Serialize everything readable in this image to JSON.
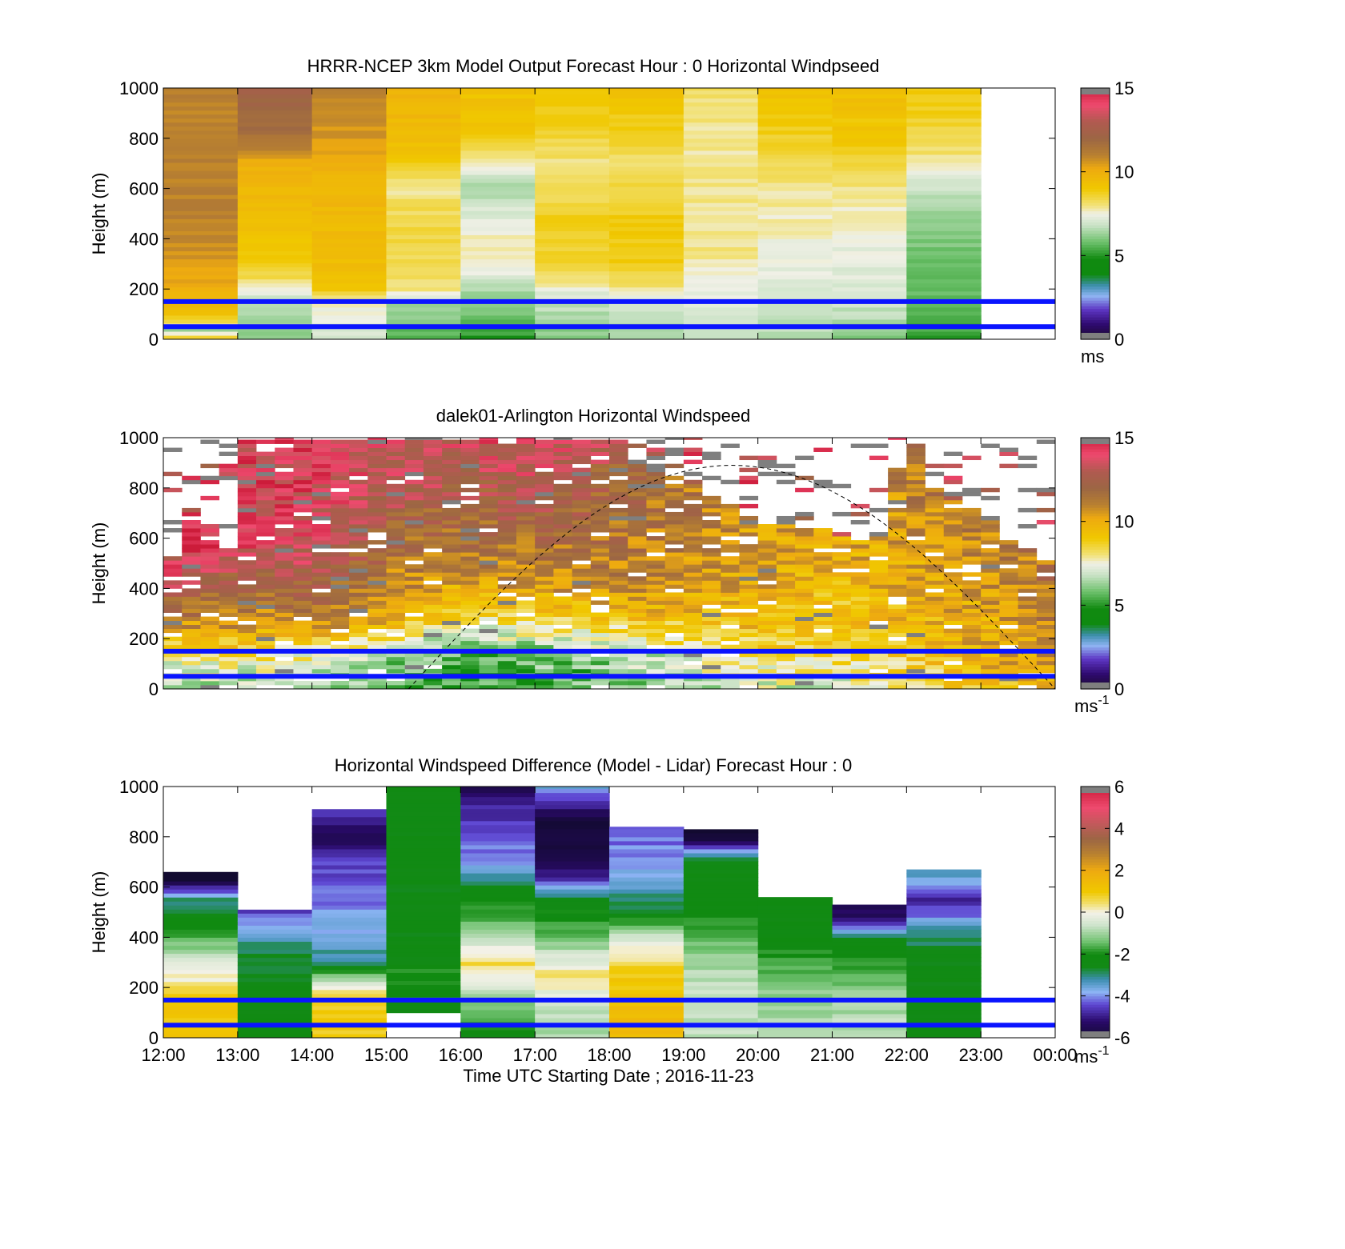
{
  "figure": {
    "xlabel": "Time UTC  Starting Date ; 2016-11-23"
  },
  "chart_data": [
    {
      "type": "heatmap",
      "title": "HRRR-NCEP 3km Model Output   Forecast Hour : 0 Horizontal Windpseed",
      "ylabel": "Height (m)",
      "yticks": [
        "0",
        "200",
        "400",
        "600",
        "800",
        "1000"
      ],
      "ylim": [
        0,
        1000
      ],
      "x_tick_labels": [
        "12:00",
        "13:00",
        "14:00",
        "15:00",
        "16:00",
        "17:00",
        "18:00",
        "19:00",
        "20:00",
        "21:00",
        "22:00",
        "23:00",
        "00:00"
      ],
      "show_xtick_labels": false,
      "colorbar": {
        "range": [
          0,
          15
        ],
        "ticks": [
          "0",
          "5",
          "10",
          "15"
        ],
        "unit": "ms",
        "unit_sup": "",
        "palette": "speed"
      },
      "reference_lines_m": [
        150,
        50
      ],
      "reference_line_color": "#0a14ff",
      "columns": [
        {
          "hour": "12:00",
          "profile": [
            [
              0,
              9.5
            ],
            [
              40,
              6.0
            ],
            [
              60,
              8.5
            ],
            [
              100,
              9.2
            ],
            [
              200,
              10.0
            ],
            [
              300,
              10.5
            ],
            [
              500,
              11.0
            ],
            [
              1000,
              11.0
            ]
          ]
        },
        {
          "hour": "13:00",
          "profile": [
            [
              0,
              6.2
            ],
            [
              150,
              6.8
            ],
            [
              200,
              7.5
            ],
            [
              260,
              8.5
            ],
            [
              400,
              9.2
            ],
            [
              700,
              10.0
            ],
            [
              800,
              11.5
            ],
            [
              900,
              12.0
            ],
            [
              1000,
              12.3
            ]
          ]
        },
        {
          "hour": "14:00",
          "profile": [
            [
              0,
              7.0
            ],
            [
              150,
              7.6
            ],
            [
              200,
              9.0
            ],
            [
              300,
              9.4
            ],
            [
              650,
              9.8
            ],
            [
              800,
              10.5
            ],
            [
              1000,
              11.0
            ]
          ]
        },
        {
          "hour": "15:00",
          "profile": [
            [
              0,
              5.5
            ],
            [
              150,
              6.5
            ],
            [
              200,
              8.0
            ],
            [
              400,
              8.5
            ],
            [
              550,
              8.2
            ],
            [
              620,
              7.8
            ],
            [
              700,
              9.0
            ],
            [
              800,
              9.5
            ],
            [
              1000,
              9.8
            ]
          ]
        },
        {
          "hour": "16:00",
          "profile": [
            [
              0,
              5.0
            ],
            [
              100,
              5.8
            ],
            [
              200,
              6.6
            ],
            [
              280,
              7.6
            ],
            [
              400,
              7.7
            ],
            [
              500,
              7.2
            ],
            [
              600,
              6.5
            ],
            [
              700,
              7.6
            ],
            [
              800,
              9.0
            ],
            [
              1000,
              9.3
            ]
          ]
        },
        {
          "hour": "17:00",
          "profile": [
            [
              0,
              6.0
            ],
            [
              150,
              6.8
            ],
            [
              220,
              7.8
            ],
            [
              300,
              8.5
            ],
            [
              450,
              8.8
            ],
            [
              600,
              8.3
            ],
            [
              700,
              8.0
            ],
            [
              800,
              8.5
            ],
            [
              1000,
              9.2
            ]
          ]
        },
        {
          "hour": "18:00",
          "profile": [
            [
              0,
              6.2
            ],
            [
              150,
              7.2
            ],
            [
              200,
              8.0
            ],
            [
              300,
              8.8
            ],
            [
              450,
              9.0
            ],
            [
              600,
              8.4
            ],
            [
              700,
              8.0
            ],
            [
              800,
              8.6
            ],
            [
              1000,
              9.3
            ]
          ]
        },
        {
          "hour": "19:00",
          "profile": [
            [
              0,
              6.8
            ],
            [
              150,
              7.4
            ],
            [
              250,
              7.6
            ],
            [
              350,
              8.0
            ],
            [
              600,
              7.9
            ],
            [
              800,
              7.8
            ],
            [
              1000,
              8.2
            ]
          ]
        },
        {
          "hour": "20:00",
          "profile": [
            [
              0,
              6.5
            ],
            [
              150,
              7.0
            ],
            [
              400,
              7.6
            ],
            [
              600,
              7.9
            ],
            [
              700,
              8.3
            ],
            [
              900,
              9.0
            ],
            [
              1000,
              9.3
            ]
          ]
        },
        {
          "hour": "21:00",
          "profile": [
            [
              0,
              6.0
            ],
            [
              150,
              7.0
            ],
            [
              450,
              7.5
            ],
            [
              600,
              8.0
            ],
            [
              800,
              9.0
            ],
            [
              1000,
              9.4
            ]
          ]
        },
        {
          "hour": "22:00",
          "profile": [
            [
              0,
              5.2
            ],
            [
              150,
              5.6
            ],
            [
              400,
              6.0
            ],
            [
              600,
              6.9
            ],
            [
              700,
              7.8
            ],
            [
              800,
              8.4
            ],
            [
              1000,
              9.0
            ]
          ]
        }
      ]
    },
    {
      "type": "heatmap",
      "title": "dalek01-Arlington  Horizontal Windspeed",
      "ylabel": "Height (m)",
      "yticks": [
        "0",
        "200",
        "400",
        "600",
        "800",
        "1000"
      ],
      "ylim": [
        0,
        1000
      ],
      "x_tick_labels": [
        "12:00",
        "13:00",
        "14:00",
        "15:00",
        "16:00",
        "17:00",
        "18:00",
        "19:00",
        "20:00",
        "21:00",
        "22:00",
        "23:00",
        "00:00"
      ],
      "show_xtick_labels": false,
      "colorbar": {
        "range": [
          0,
          15
        ],
        "ticks": [
          "0",
          "5",
          "10",
          "15"
        ],
        "unit": "ms",
        "unit_sup": "-1",
        "palette": "speed"
      },
      "reference_lines_m": [
        150,
        50
      ],
      "reference_line_color": "#0a14ff",
      "sun_elevation_curve": {
        "start_hour": 15.3,
        "end_hour": 24.0,
        "peak_m": 890,
        "style": "dashed"
      },
      "sub_columns": 48,
      "profile_hours": [
        12.0,
        13.0,
        14.0,
        15.0,
        16.0,
        17.0,
        18.0,
        19.0,
        20.0,
        21.0,
        22.0,
        23.0,
        23.9
      ],
      "profile_heights_m": [
        0,
        150,
        250,
        400,
        600,
        800,
        1000
      ],
      "profile_values": [
        [
          6.5,
          8.0,
          10.5,
          13.0,
          15.5,
          null,
          null
        ],
        [
          6.2,
          8.5,
          10.5,
          12.0,
          14.0,
          null,
          null
        ],
        [
          6.0,
          8.0,
          10.5,
          12.5,
          13.5,
          14.0,
          null
        ],
        [
          5.5,
          6.5,
          9.5,
          11.0,
          12.0,
          13.0,
          13.5
        ],
        [
          5.0,
          5.5,
          7.5,
          10.0,
          11.5,
          12.5,
          13.5
        ],
        [
          5.3,
          6.0,
          8.0,
          10.5,
          11.8,
          13.0,
          14.0
        ],
        [
          5.5,
          6.5,
          8.5,
          11.0,
          11.5,
          12.0,
          13.0
        ],
        [
          6.5,
          7.5,
          9.0,
          10.5,
          11.0,
          11.5,
          null
        ],
        [
          7.0,
          8.5,
          9.5,
          10.0,
          10.5,
          null,
          null
        ],
        [
          7.0,
          8.5,
          9.0,
          9.5,
          10.0,
          null,
          null
        ],
        [
          8.0,
          9.0,
          9.5,
          10.0,
          10.5,
          11.0,
          12.0
        ],
        [
          9.0,
          10.0,
          10.0,
          10.5,
          11.0,
          11.5,
          null
        ],
        [
          10.0,
          10.5,
          11.0,
          11.5,
          null,
          null,
          null
        ]
      ],
      "data_top_m": [
        520,
        680,
        640,
        600,
        1000,
        1000,
        1000,
        1000,
        1000,
        1000,
        1000,
        1000,
        1000,
        1000,
        1000,
        1000,
        1000,
        1000,
        1000,
        1000,
        1000,
        1000,
        1000,
        1000,
        1000,
        900,
        880,
        860,
        820,
        780,
        740,
        700,
        680,
        660,
        650,
        640,
        620,
        600,
        620,
        880,
        980,
        800,
        760,
        720,
        680,
        600,
        560,
        520
      ],
      "missing_shown_as": "gray"
    },
    {
      "type": "heatmap",
      "title": "Horizontal Windspeed Difference (Model - Lidar) Forecast Hour : 0",
      "ylabel": "Height (m)",
      "yticks": [
        "0",
        "200",
        "400",
        "600",
        "800",
        "1000"
      ],
      "ylim": [
        0,
        1000
      ],
      "x_tick_labels": [
        "12:00",
        "13:00",
        "14:00",
        "15:00",
        "16:00",
        "17:00",
        "18:00",
        "19:00",
        "20:00",
        "21:00",
        "22:00",
        "23:00",
        "00:00"
      ],
      "show_xtick_labels": true,
      "colorbar": {
        "range": [
          -6,
          6
        ],
        "ticks": [
          "-6",
          "-4",
          "-2",
          "0",
          "2",
          "4",
          "6"
        ],
        "unit": "ms",
        "unit_sup": "-1",
        "palette": "difference"
      },
      "reference_lines_m": [
        150,
        50
      ],
      "reference_line_color": "#0a14ff",
      "columns": [
        {
          "hour": "12:00",
          "top_m": 660,
          "profile": [
            [
              0,
              1.0
            ],
            [
              150,
              1.2
            ],
            [
              200,
              0.5
            ],
            [
              300,
              -0.5
            ],
            [
              450,
              -2.0
            ],
            [
              550,
              -3.0
            ],
            [
              600,
              -5.0
            ],
            [
              650,
              -6.5
            ]
          ]
        },
        {
          "hour": "13:00",
          "top_m": 510,
          "profile": [
            [
              0,
              -2.2
            ],
            [
              200,
              -2.4
            ],
            [
              350,
              -2.8
            ],
            [
              420,
              -3.5
            ],
            [
              500,
              -4.5
            ]
          ]
        },
        {
          "hour": "14:00",
          "top_m": 910,
          "profile": [
            [
              0,
              1.0
            ],
            [
              150,
              0.8
            ],
            [
              200,
              0.1
            ],
            [
              300,
              -3.0
            ],
            [
              500,
              -4.0
            ],
            [
              700,
              -4.5
            ],
            [
              800,
              -5.5
            ],
            [
              900,
              -4.5
            ]
          ]
        },
        {
          "hour": "15:00",
          "top_m": 1000,
          "profile": [
            [
              100,
              -2.2
            ],
            [
              280,
              -2.0
            ],
            [
              300,
              -2.4
            ],
            [
              1000,
              -2.4
            ]
          ]
        },
        {
          "hour": "16:00",
          "top_m": 1000,
          "profile": [
            [
              0,
              -2.5
            ],
            [
              100,
              -1.5
            ],
            [
              200,
              -0.6
            ],
            [
              300,
              0.6
            ],
            [
              450,
              -1.5
            ],
            [
              600,
              -2.5
            ],
            [
              700,
              -4.0
            ],
            [
              850,
              -4.5
            ],
            [
              950,
              -5.0
            ],
            [
              1000,
              -5.5
            ]
          ]
        },
        {
          "hour": "17:00",
          "top_m": 1000,
          "profile": [
            [
              0,
              -1.0
            ],
            [
              150,
              -0.5
            ],
            [
              250,
              0.5
            ],
            [
              400,
              -1.5
            ],
            [
              550,
              -2.5
            ],
            [
              650,
              -5.0
            ],
            [
              800,
              -6.0
            ],
            [
              900,
              -5.5
            ],
            [
              1000,
              -3.5
            ]
          ]
        },
        {
          "hour": "18:00",
          "top_m": 840,
          "profile": [
            [
              0,
              1.5
            ],
            [
              150,
              1.2
            ],
            [
              250,
              1.0
            ],
            [
              400,
              -0.5
            ],
            [
              500,
              -2.5
            ],
            [
              650,
              -3.8
            ],
            [
              800,
              -4.2
            ]
          ]
        },
        {
          "hour": "19:00",
          "top_m": 830,
          "profile": [
            [
              0,
              -0.8
            ],
            [
              150,
              -0.5
            ],
            [
              250,
              -0.8
            ],
            [
              400,
              -1.5
            ],
            [
              500,
              -2.2
            ],
            [
              600,
              -2.4
            ],
            [
              700,
              -2.4
            ],
            [
              800,
              -6.0
            ]
          ]
        },
        {
          "hour": "20:00",
          "top_m": 560,
          "profile": [
            [
              0,
              -0.8
            ],
            [
              150,
              -1.0
            ],
            [
              250,
              -1.5
            ],
            [
              400,
              -2.3
            ],
            [
              550,
              -2.3
            ]
          ]
        },
        {
          "hour": "21:00",
          "top_m": 530,
          "profile": [
            [
              0,
              -0.7
            ],
            [
              150,
              -1.0
            ],
            [
              300,
              -1.8
            ],
            [
              400,
              -2.5
            ],
            [
              450,
              -4.5
            ],
            [
              500,
              -5.5
            ]
          ]
        },
        {
          "hour": "22:00",
          "top_m": 670,
          "profile": [
            [
              0,
              -2.4
            ],
            [
              200,
              -2.4
            ],
            [
              350,
              -2.5
            ],
            [
              450,
              -3.5
            ],
            [
              550,
              -5.0
            ],
            [
              650,
              -3.2
            ]
          ]
        }
      ]
    }
  ]
}
